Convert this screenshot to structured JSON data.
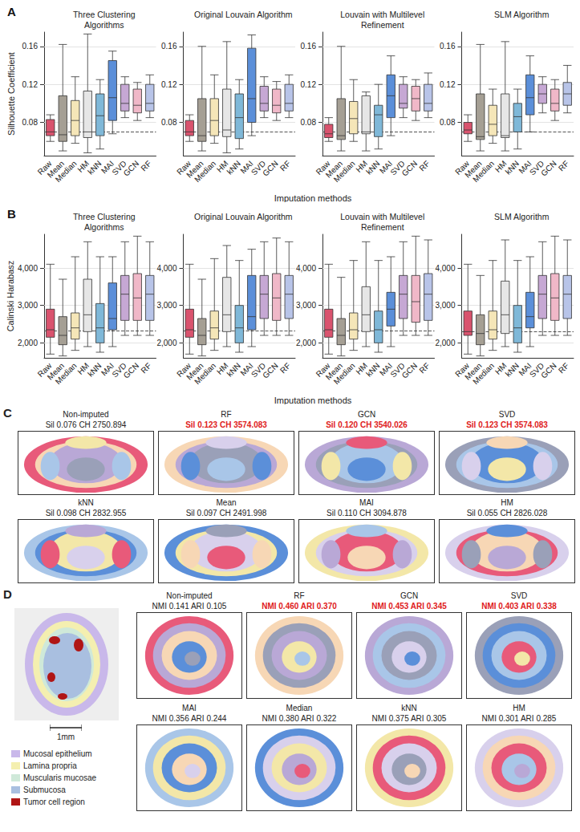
{
  "chart_data": [
    {
      "type": "boxplot",
      "label": "A",
      "ylabel": "Silhouette Coefficient",
      "xlabel": "Imputation methods",
      "categories": [
        "Raw",
        "Mean",
        "Median",
        "HM",
        "kNN",
        "MAI",
        "SVD",
        "GCN",
        "RF"
      ],
      "colors": [
        "#d9536e",
        "#a59f94",
        "#f5e6b8",
        "#e6e6e6",
        "#7fb8d8",
        "#5b8fd9",
        "#c6a8d4",
        "#f0b8c8",
        "#b8c4e8"
      ],
      "ylim": [
        0.045,
        0.175
      ],
      "yticks": [
        0.08,
        0.12,
        0.16
      ],
      "grid": true,
      "panels": [
        {
          "title": "Three Clustering Algorithms",
          "reference_line": 0.069,
          "boxes": [
            [
              0.06,
              0.066,
              0.07,
              0.083,
              0.088
            ],
            [
              0.05,
              0.06,
              0.067,
              0.108,
              0.162
            ],
            [
              0.058,
              0.066,
              0.082,
              0.103,
              0.128
            ],
            [
              0.048,
              0.064,
              0.07,
              0.113,
              0.173
            ],
            [
              0.052,
              0.066,
              0.087,
              0.11,
              0.125
            ],
            [
              0.068,
              0.082,
              0.106,
              0.145,
              0.155
            ],
            [
              0.085,
              0.092,
              0.1,
              0.12,
              0.128
            ],
            [
              0.082,
              0.09,
              0.098,
              0.115,
              0.122
            ],
            [
              0.085,
              0.092,
              0.1,
              0.12,
              0.13
            ]
          ]
        },
        {
          "title": "Original Louvain Algorithm",
          "reference_line": 0.069,
          "boxes": [
            [
              0.06,
              0.066,
              0.07,
              0.082,
              0.088
            ],
            [
              0.05,
              0.06,
              0.066,
              0.105,
              0.16
            ],
            [
              0.058,
              0.066,
              0.082,
              0.105,
              0.13
            ],
            [
              0.048,
              0.065,
              0.072,
              0.115,
              0.165
            ],
            [
              0.052,
              0.063,
              0.085,
              0.11,
              0.125
            ],
            [
              0.066,
              0.08,
              0.105,
              0.158,
              0.172
            ],
            [
              0.085,
              0.092,
              0.1,
              0.118,
              0.128
            ],
            [
              0.082,
              0.09,
              0.098,
              0.115,
              0.123
            ],
            [
              0.085,
              0.092,
              0.1,
              0.12,
              0.13
            ]
          ]
        },
        {
          "title": "Louvain with Multilevel Refinement",
          "reference_line": 0.068,
          "boxes": [
            [
              0.06,
              0.064,
              0.068,
              0.078,
              0.085
            ],
            [
              0.05,
              0.062,
              0.066,
              0.105,
              0.16
            ],
            [
              0.06,
              0.068,
              0.084,
              0.102,
              0.125
            ],
            [
              0.05,
              0.068,
              0.07,
              0.108,
              0.112
            ],
            [
              0.052,
              0.065,
              0.088,
              0.098,
              0.12
            ],
            [
              0.066,
              0.085,
              0.108,
              0.13,
              0.15
            ],
            [
              0.085,
              0.095,
              0.1,
              0.12,
              0.128
            ],
            [
              0.082,
              0.092,
              0.105,
              0.118,
              0.125
            ],
            [
              0.085,
              0.092,
              0.1,
              0.12,
              0.132
            ]
          ]
        },
        {
          "title": "SLM Algorithm",
          "reference_line": 0.072,
          "boxes": [
            [
              0.06,
              0.068,
              0.072,
              0.08,
              0.088
            ],
            [
              0.05,
              0.062,
              0.065,
              0.11,
              0.162
            ],
            [
              0.058,
              0.066,
              0.078,
              0.098,
              0.115
            ],
            [
              0.05,
              0.064,
              0.066,
              0.11,
              0.165
            ],
            [
              0.052,
              0.07,
              0.086,
              0.1,
              0.115
            ],
            [
              0.07,
              0.088,
              0.106,
              0.13,
              0.15
            ],
            [
              0.09,
              0.1,
              0.11,
              0.12,
              0.128
            ],
            [
              0.082,
              0.092,
              0.1,
              0.115,
              0.125
            ],
            [
              0.09,
              0.098,
              0.11,
              0.122,
              0.14
            ]
          ]
        }
      ]
    },
    {
      "type": "boxplot",
      "label": "B",
      "ylabel": "Calinski Harabasz",
      "xlabel": "Imputation methods",
      "categories": [
        "Raw",
        "Mean",
        "Median",
        "HM",
        "kNN",
        "MAI",
        "SVD",
        "GCN",
        "RF"
      ],
      "colors": [
        "#d9536e",
        "#a59f94",
        "#f5e6b8",
        "#e6e6e6",
        "#7fb8d8",
        "#5b8fd9",
        "#c6a8d4",
        "#f0b8c8",
        "#b8c4e8"
      ],
      "ylim": [
        1600,
        4900
      ],
      "yticks": [
        2000,
        3000,
        4000
      ],
      "grid": true,
      "panels": [
        {
          "title": "Three Clustering Algorithms",
          "reference_line": 2330,
          "boxes": [
            [
              1700,
              2150,
              2350,
              2900,
              4100
            ],
            [
              1650,
              1950,
              2200,
              2700,
              3700
            ],
            [
              1800,
              2100,
              2400,
              2800,
              4300
            ],
            [
              1900,
              2300,
              2750,
              3700,
              4700
            ],
            [
              1750,
              2000,
              2400,
              3050,
              4300
            ],
            [
              1900,
              2350,
              2650,
              3600,
              4300
            ],
            [
              2200,
              2600,
              3300,
              3800,
              4700
            ],
            [
              2200,
              2600,
              3200,
              3850,
              4850
            ],
            [
              2200,
              2600,
              3300,
              3800,
              4700
            ]
          ]
        },
        {
          "title": "Original Louvain Algorithm",
          "reference_line": 2330,
          "boxes": [
            [
              1700,
              2150,
              2350,
              2900,
              4100
            ],
            [
              1650,
              1950,
              2200,
              2650,
              3700
            ],
            [
              1800,
              2100,
              2400,
              2850,
              4250
            ],
            [
              1900,
              2300,
              2750,
              3750,
              4600
            ],
            [
              1750,
              2000,
              2400,
              3000,
              4200
            ],
            [
              1900,
              2350,
              2700,
              3800,
              4500
            ],
            [
              2200,
              2650,
              3300,
              3800,
              4700
            ],
            [
              2200,
              2600,
              3200,
              3850,
              4800
            ],
            [
              2200,
              2650,
              3300,
              3800,
              4700
            ]
          ]
        },
        {
          "title": "Louvain with Multilevel Refinement",
          "reference_line": 2330,
          "boxes": [
            [
              1700,
              2150,
              2350,
              2900,
              4100
            ],
            [
              1650,
              1950,
              2200,
              2650,
              3750
            ],
            [
              1800,
              2100,
              2350,
              2800,
              4200
            ],
            [
              1900,
              2300,
              2750,
              3500,
              4700
            ],
            [
              1750,
              2000,
              2350,
              2850,
              4200
            ],
            [
              1900,
              2450,
              2900,
              3350,
              4300
            ],
            [
              2200,
              2650,
              3300,
              3800,
              4700
            ],
            [
              2200,
              2550,
              3100,
              3800,
              4850
            ],
            [
              2200,
              2600,
              3300,
              3850,
              4750
            ]
          ]
        },
        {
          "title": "SLM Algorithm",
          "reference_line": 2300,
          "boxes": [
            [
              1700,
              2200,
              2300,
              2850,
              4100
            ],
            [
              1650,
              1950,
              2250,
              2750,
              3800
            ],
            [
              1800,
              2100,
              2350,
              2850,
              4200
            ],
            [
              1900,
              2250,
              2750,
              3650,
              4750
            ],
            [
              1750,
              2000,
              2400,
              3000,
              4200
            ],
            [
              1900,
              2400,
              2700,
              3350,
              4300
            ],
            [
              2200,
              2650,
              3300,
              3800,
              4700
            ],
            [
              2200,
              2600,
              3200,
              3850,
              4850
            ],
            [
              2200,
              2650,
              3300,
              3800,
              4750
            ]
          ]
        }
      ]
    }
  ],
  "spatial": [
    {
      "label": "C",
      "items": [
        {
          "title": "Non-imputed",
          "metrics": "Sil 0.076 CH 2750.894"
        },
        {
          "title": "RF",
          "metrics": "Sil 0.123 CH 3574.083",
          "color": "#e0201b"
        },
        {
          "title": "GCN",
          "metrics": "Sil 0.120 CH 3540.026",
          "color": "#e0201b"
        },
        {
          "title": "SVD",
          "metrics": "Sil 0.123 CH 3574.083",
          "color": "#e0201b"
        },
        {
          "title": "kNN",
          "metrics": "Sil 0.098 CH 2832.955"
        },
        {
          "title": "Mean",
          "metrics": "Sil 0.097 CH 2491.998"
        },
        {
          "title": "MAI",
          "metrics": "Sil 0.110 CH 3094.878"
        },
        {
          "title": "HM",
          "metrics": "Sil 0.055 CH 2826.028"
        }
      ]
    },
    {
      "label": "D",
      "scale_bar": "1mm",
      "tissue_legend": [
        {
          "label": "Mucosal epithelium",
          "color": "#c9b8ea"
        },
        {
          "label": "Lamina propria",
          "color": "#f4efb0"
        },
        {
          "label": "Muscularis mucosae",
          "color": "#cfe9d9"
        },
        {
          "label": "Submucosa",
          "color": "#a9bfe0"
        },
        {
          "label": "Tumor cell region",
          "color": "#b01515"
        }
      ],
      "items": [
        {
          "title": "Non-imputed",
          "metrics": "NMI 0.141 ARI 0.105"
        },
        {
          "title": "RF",
          "metrics": "NMI 0.460 ARI 0.370",
          "color": "#e0201b"
        },
        {
          "title": "GCN",
          "metrics": "NMI 0.453 ARI 0.345",
          "color": "#e0201b"
        },
        {
          "title": "SVD",
          "metrics": "NMI 0.403 ARI 0.338",
          "color": "#e0201b"
        },
        {
          "title": "MAI",
          "metrics": "NMI 0.356 ARI 0.244"
        },
        {
          "title": "Median",
          "metrics": "NMI 0.380 ARI 0.322"
        },
        {
          "title": "kNN",
          "metrics": "NMI 0.375 ARI 0.305"
        },
        {
          "title": "HM",
          "metrics": "NMI 0.301 ARI 0.285"
        }
      ]
    }
  ]
}
